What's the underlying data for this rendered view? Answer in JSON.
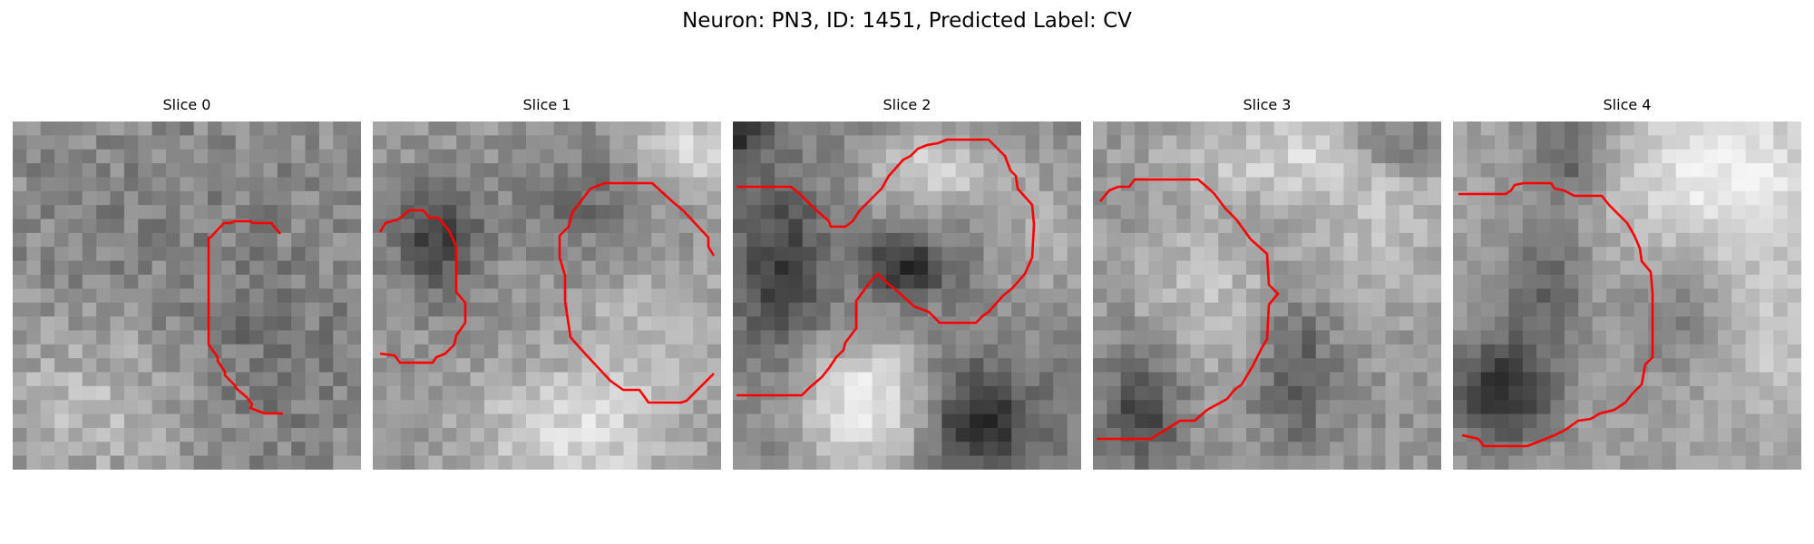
{
  "figure": {
    "title": "Neuron: PN3, ID: 1451, Predicted Label: CV"
  },
  "panels": [
    {
      "title": "Slice 0",
      "contour_color": "#ff0000"
    },
    {
      "title": "Slice 1",
      "contour_color": "#ff0000"
    },
    {
      "title": "Slice 2",
      "contour_color": "#ff0000"
    },
    {
      "title": "Slice 3",
      "contour_color": "#ff0000"
    },
    {
      "title": "Slice 4",
      "contour_color": "#ff0000"
    }
  ]
}
